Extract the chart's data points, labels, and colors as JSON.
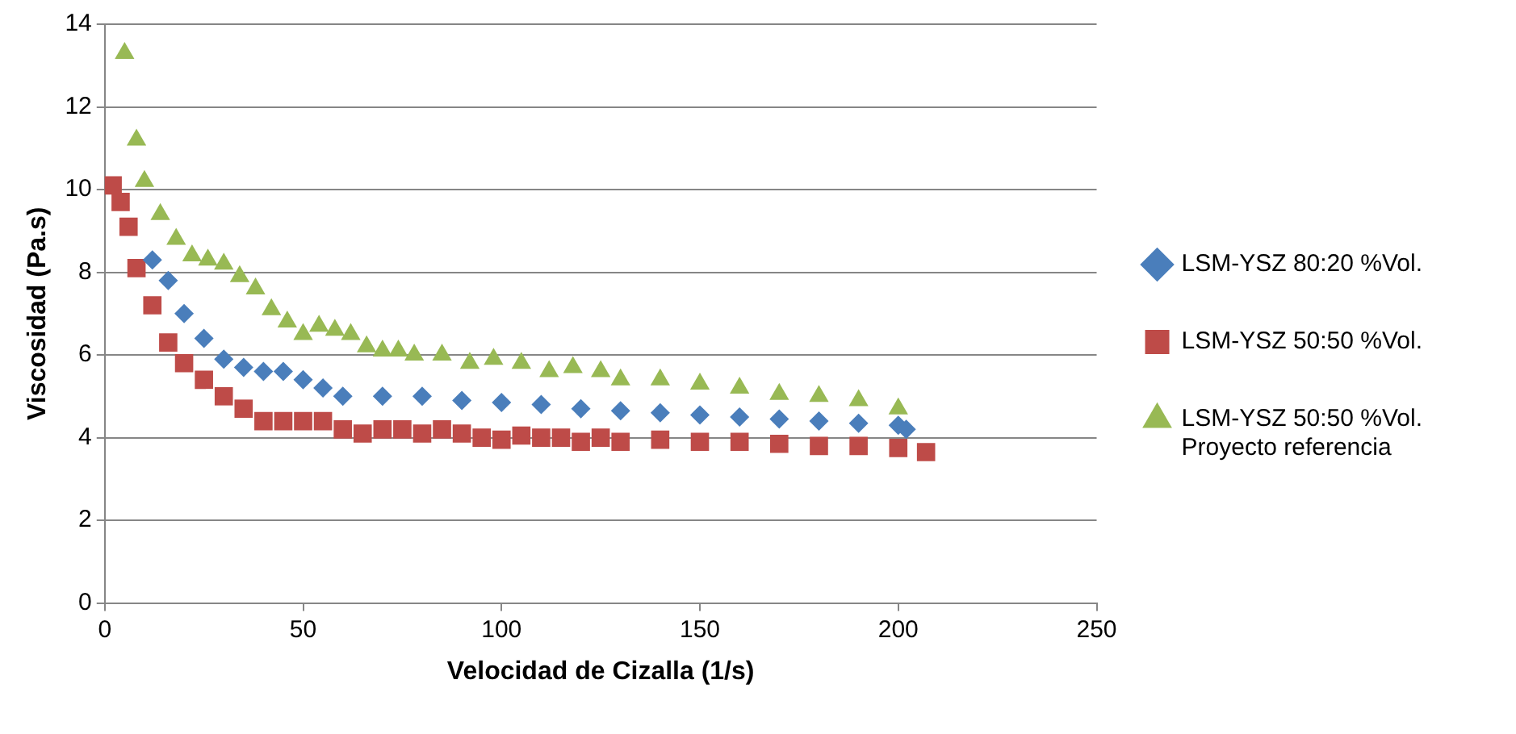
{
  "chart_data": {
    "type": "scatter",
    "xlabel": "Velocidad de Cizalla (1/s)",
    "ylabel": "Viscosidad (Pa.s)",
    "xlim": [
      0,
      250
    ],
    "xticks": [
      0,
      50,
      100,
      150,
      200,
      250
    ],
    "ylim": [
      0,
      14
    ],
    "yticks": [
      0,
      2,
      4,
      6,
      8,
      10,
      12,
      14
    ],
    "grid": "y",
    "legend": "right",
    "series": [
      {
        "name": "LSM-YSZ 80:20 %Vol.",
        "color": "#4a7ebb",
        "marker": "diamond",
        "x": [
          12,
          16,
          20,
          25,
          30,
          35,
          40,
          45,
          50,
          55,
          60,
          70,
          80,
          90,
          100,
          110,
          120,
          130,
          140,
          150,
          160,
          170,
          180,
          190,
          200,
          202
        ],
        "values": [
          8.3,
          7.8,
          7.0,
          6.4,
          5.9,
          5.7,
          5.6,
          5.6,
          5.4,
          5.2,
          5.0,
          5.0,
          5.0,
          4.9,
          4.85,
          4.8,
          4.7,
          4.65,
          4.6,
          4.55,
          4.5,
          4.45,
          4.4,
          4.35,
          4.3,
          4.2
        ]
      },
      {
        "name": "LSM-YSZ 50:50 %Vol.",
        "color": "#be4b48",
        "marker": "square",
        "x": [
          2,
          4,
          6,
          8,
          12,
          16,
          20,
          25,
          30,
          35,
          40,
          45,
          50,
          55,
          60,
          65,
          70,
          75,
          80,
          85,
          90,
          95,
          100,
          105,
          110,
          115,
          120,
          125,
          130,
          140,
          150,
          160,
          170,
          180,
          190,
          200,
          207
        ],
        "values": [
          10.1,
          9.7,
          9.1,
          8.1,
          7.2,
          6.3,
          5.8,
          5.4,
          5.0,
          4.7,
          4.4,
          4.4,
          4.4,
          4.4,
          4.2,
          4.1,
          4.2,
          4.2,
          4.1,
          4.2,
          4.1,
          4.0,
          3.95,
          4.05,
          4.0,
          4.0,
          3.9,
          4.0,
          3.9,
          3.95,
          3.9,
          3.9,
          3.85,
          3.8,
          3.8,
          3.75,
          3.65
        ]
      },
      {
        "name": "LSM-YSZ 50:50 %Vol. Proyecto referencia",
        "color": "#98b954",
        "marker": "triangle",
        "x": [
          5,
          8,
          10,
          14,
          18,
          22,
          26,
          30,
          34,
          38,
          42,
          46,
          50,
          54,
          58,
          62,
          66,
          70,
          74,
          78,
          85,
          92,
          98,
          105,
          112,
          118,
          125,
          130,
          140,
          150,
          160,
          170,
          180,
          190,
          200
        ],
        "values": [
          13.3,
          11.2,
          10.2,
          9.4,
          8.8,
          8.4,
          8.3,
          8.2,
          7.9,
          7.6,
          7.1,
          6.8,
          6.5,
          6.7,
          6.6,
          6.5,
          6.2,
          6.1,
          6.1,
          6.0,
          6.0,
          5.8,
          5.9,
          5.8,
          5.6,
          5.7,
          5.6,
          5.4,
          5.4,
          5.3,
          5.2,
          5.05,
          5.0,
          4.9,
          4.7
        ]
      }
    ]
  }
}
